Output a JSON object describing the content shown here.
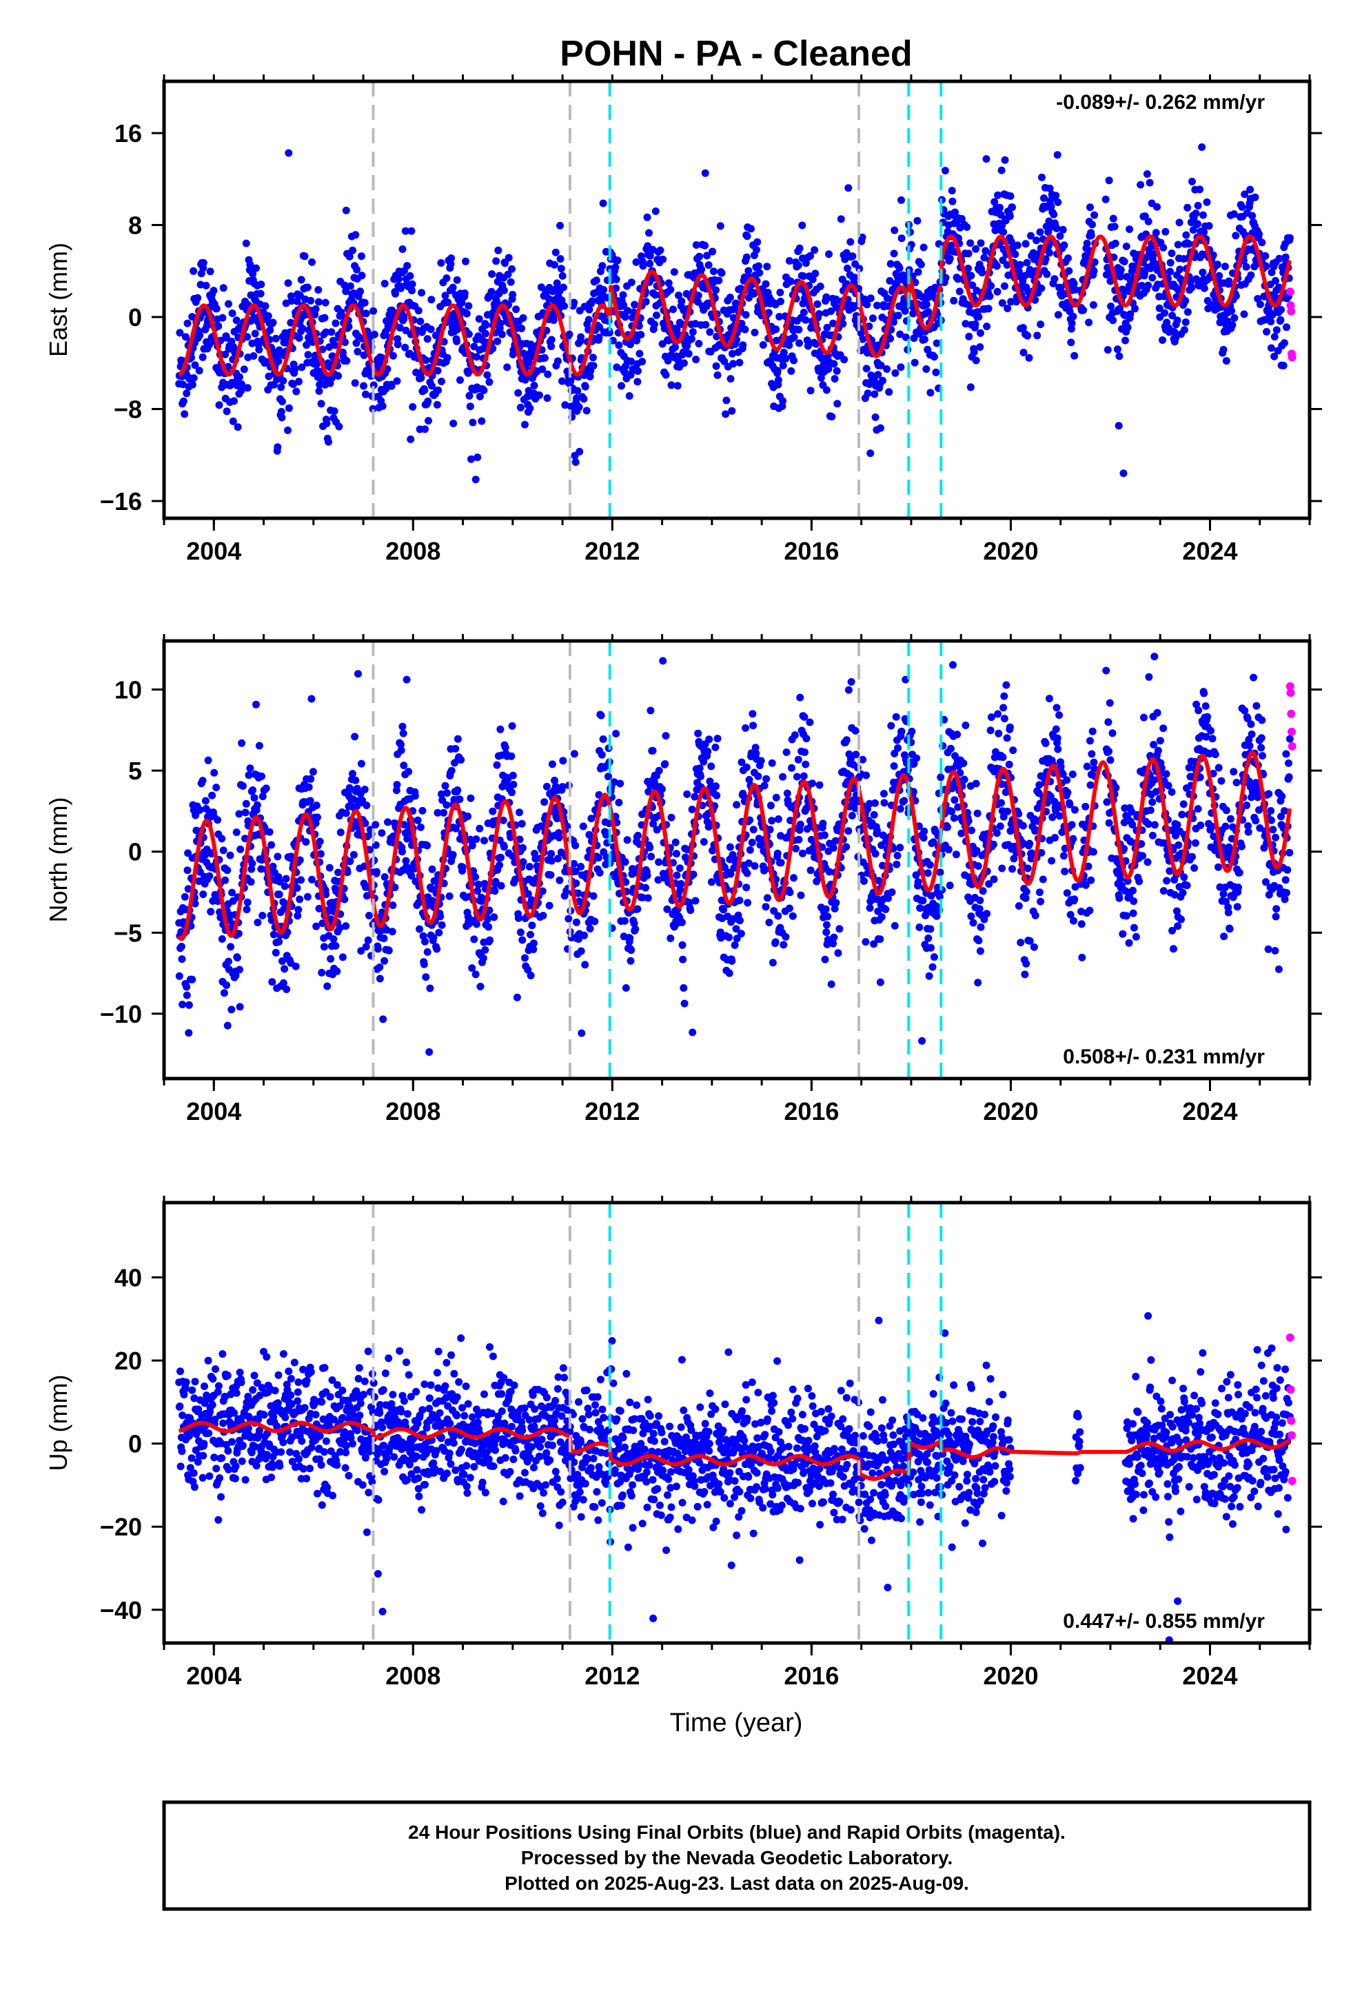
{
  "title": "POHN  - PA - Cleaned",
  "xlabel": "Time (year)",
  "footer": {
    "line1": "24 Hour Positions Using Final Orbits (blue) and Rapid Orbits (magenta).",
    "line2": "Processed by the Nevada Geodetic Laboratory.",
    "line3": "Plotted on 2025-Aug-23. Last data on 2025-Aug-09."
  },
  "colors": {
    "final_points": "#0000ff",
    "rapid_points": "#ff00ff",
    "model": "#ff0000",
    "gray_lines": "#bbbbbb",
    "cyan_lines": "#00e5ee"
  },
  "chart_data": [
    {
      "type": "scatter",
      "ylabel": "East (mm)",
      "xlim": [
        2003.0,
        2026.0
      ],
      "ylim": [
        -17.5,
        20.5
      ],
      "xticks": [
        2004,
        2008,
        2012,
        2016,
        2020,
        2024
      ],
      "yticks": [
        -16,
        -8,
        0,
        8,
        16
      ],
      "rate": "-0.089+/- 0.262 mm/yr",
      "rate_position": "top-right",
      "data_start": 2003.3,
      "data_end": 2025.61,
      "gaps": [
        [
          2021.3,
          2021.4
        ],
        [
          2021.7,
          2021.9
        ]
      ],
      "gray_lines": [
        2007.2,
        2011.15,
        2016.95
      ],
      "cyan_lines": [
        2011.95,
        2017.95,
        2018.6
      ],
      "model": {
        "segments": [
          {
            "x0": 2003.3,
            "x1": 2011.95,
            "offset": -2.0,
            "trend": 0.0
          },
          {
            "x0": 2011.95,
            "x1": 2016.95,
            "offset": 1.2,
            "trend": -0.3
          },
          {
            "x0": 2016.95,
            "x1": 2017.95,
            "offset": -0.4,
            "trend": 0.0
          },
          {
            "x0": 2017.95,
            "x1": 2018.6,
            "offset": 2.0,
            "trend": 0.0
          },
          {
            "x0": 2018.6,
            "x1": 2025.61,
            "offset": 4.0,
            "trend": 0.0
          }
        ],
        "annual_amp": 3.0,
        "annual_phase": 0.55
      },
      "scatter_sigma": 2.6,
      "rapid_values": [
        2.2,
        1.0,
        0.5,
        -3.2,
        -3.5
      ]
    },
    {
      "type": "scatter",
      "ylabel": "North (mm)",
      "xlim": [
        2003.0,
        2026.0
      ],
      "ylim": [
        -14.0,
        13.0
      ],
      "xticks": [
        2004,
        2008,
        2012,
        2016,
        2020,
        2024
      ],
      "yticks": [
        -10,
        -5,
        0,
        5,
        10
      ],
      "rate": "0.508+/- 0.231 mm/yr",
      "rate_position": "bottom-right",
      "data_start": 2003.3,
      "data_end": 2025.61,
      "gaps": [
        [
          2021.3,
          2021.4
        ],
        [
          2021.7,
          2021.9
        ]
      ],
      "gray_lines": [
        2007.2,
        2011.15,
        2016.95
      ],
      "cyan_lines": [
        2011.95,
        2017.95,
        2018.6
      ],
      "model": {
        "segments": [
          {
            "x0": 2003.3,
            "x1": 2025.61,
            "offset": -1.8,
            "trend": 0.2
          }
        ],
        "annual_amp": 3.6,
        "annual_phase": 0.6
      },
      "scatter_sigma": 2.4,
      "rapid_values": [
        10.2,
        9.8,
        8.5,
        7.4,
        6.5
      ]
    },
    {
      "type": "scatter",
      "ylabel": "Up (mm)",
      "xlim": [
        2003.0,
        2026.0
      ],
      "ylim": [
        -48.0,
        58.0
      ],
      "xticks": [
        2004,
        2008,
        2012,
        2016,
        2020,
        2024
      ],
      "yticks": [
        -40,
        -20,
        0,
        20,
        40
      ],
      "rate": "0.447+/- 0.855 mm/yr",
      "rate_position": "bottom-right",
      "data_start": 2003.3,
      "data_end": 2025.61,
      "gaps": [
        [
          2019.7,
          2019.8
        ],
        [
          2020.0,
          2021.3
        ],
        [
          2021.4,
          2022.3
        ]
      ],
      "gray_lines": [
        2007.2,
        2011.15,
        2016.95
      ],
      "cyan_lines": [
        2011.95,
        2017.95,
        2018.6
      ],
      "model": {
        "segments": [
          {
            "x0": 2003.3,
            "x1": 2007.2,
            "offset": 4.0,
            "trend": 0.0
          },
          {
            "x0": 2007.2,
            "x1": 2011.15,
            "offset": 2.5,
            "trend": 0.0
          },
          {
            "x0": 2011.15,
            "x1": 2011.95,
            "offset": -1.0,
            "trend": 0.0
          },
          {
            "x0": 2011.95,
            "x1": 2016.95,
            "offset": -4.0,
            "trend": 0.0
          },
          {
            "x0": 2016.95,
            "x1": 2017.95,
            "offset": -7.5,
            "trend": 0.0
          },
          {
            "x0": 2017.95,
            "x1": 2018.6,
            "offset": 0.0,
            "trend": 0.0
          },
          {
            "x0": 2018.6,
            "x1": 2025.61,
            "offset": -2.5,
            "trend": 0.38
          }
        ],
        "annual_amp": 1.0,
        "annual_phase": 0.5
      },
      "scatter_sigma": 7.5,
      "rapid_values": [
        25.5,
        13.0,
        5.5,
        2.0,
        -9.0
      ]
    }
  ]
}
